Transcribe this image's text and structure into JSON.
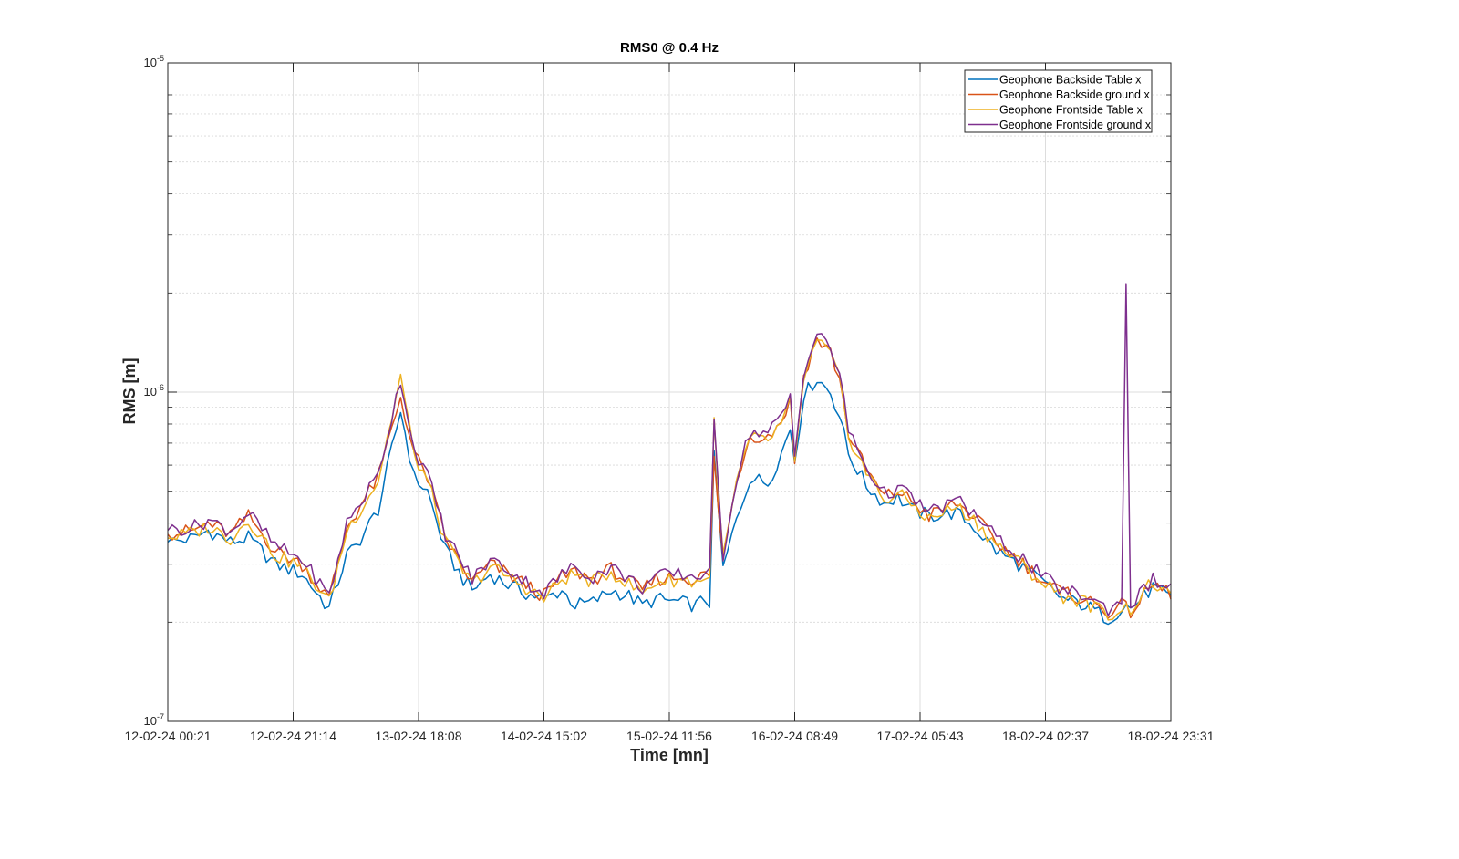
{
  "chart_data": {
    "type": "line",
    "title": "RMS0 @ 0.4 Hz",
    "xlabel": "Time [mn]",
    "ylabel": "RMS [m]",
    "yscale": "log",
    "ylim": [
      1e-07,
      1e-05
    ],
    "ytick_labels": [
      {
        "base": "10",
        "exp": "-7"
      },
      {
        "base": "10",
        "exp": "-6"
      },
      {
        "base": "10",
        "exp": "-5"
      }
    ],
    "x_tick_labels": [
      "12-02-24 00:21",
      "12-02-24 21:14",
      "13-02-24 18:08",
      "14-02-24 15:02",
      "15-02-24 11:56",
      "16-02-24 08:49",
      "17-02-24 05:43",
      "18-02-24 02:37",
      "18-02-24 23:31"
    ],
    "grid": true,
    "minor_grid": true,
    "legend_position": "top-right",
    "colors": [
      "#0072BD",
      "#D95319",
      "#EDB120",
      "#7E2F8E"
    ],
    "anchor_keys": [
      0,
      6,
      9,
      14,
      18,
      24,
      30,
      36,
      40,
      42,
      47,
      52,
      55,
      58,
      62,
      66,
      68,
      72,
      76,
      80,
      84,
      88,
      91,
      95,
      99,
      103,
      106,
      109,
      114,
      118,
      120,
      121,
      122,
      124,
      127,
      130,
      134,
      137,
      139,
      140,
      142,
      145,
      148,
      150,
      152,
      156,
      160,
      163,
      166,
      170,
      176,
      180,
      185,
      190,
      196,
      200,
      205,
      210,
      213,
      214,
      215,
      220,
      224
    ],
    "series": [
      {
        "name": "Geophone Backside Table x",
        "anchor_values": [
          3.5e-07,
          3.6e-07,
          3.8e-07,
          3.5e-07,
          3.6e-07,
          3e-07,
          2.8e-07,
          2.2e-07,
          3.2e-07,
          3.4e-07,
          4.4e-07,
          8.8e-07,
          5.5e-07,
          5e-07,
          3.3e-07,
          2.7e-07,
          2.5e-07,
          2.8e-07,
          2.6e-07,
          2.45e-07,
          2.35e-07,
          2.5e-07,
          2.25e-07,
          2.3e-07,
          2.5e-07,
          2.4e-07,
          2.25e-07,
          2.35e-07,
          2.3e-07,
          2.25e-07,
          2.35e-07,
          2.3e-07,
          6.3e-07,
          2.9e-07,
          4.1e-07,
          5.5e-07,
          5.3e-07,
          6.5e-07,
          7.8e-07,
          6.2e-07,
          9.8e-07,
          1.1e-06,
          1e-06,
          8.5e-07,
          6.5e-07,
          5.2e-07,
          4.6e-07,
          4.8e-07,
          4.4e-07,
          4.2e-07,
          4.3e-07,
          3.9e-07,
          3.3e-07,
          3e-07,
          2.6e-07,
          2.35e-07,
          2.25e-07,
          2.05e-07,
          2.2e-07,
          2.25e-07,
          2.2e-07,
          2.55e-07,
          2.35e-07
        ]
      },
      {
        "name": "Geophone Backside ground x",
        "anchor_values": [
          3.7e-07,
          3.8e-07,
          4e-07,
          3.7e-07,
          4.2e-07,
          3.3e-07,
          3e-07,
          2.35e-07,
          3.9e-07,
          4.3e-07,
          5.5e-07,
          9.7e-07,
          6.5e-07,
          5.5e-07,
          3.6e-07,
          2.9e-07,
          2.65e-07,
          3e-07,
          2.8e-07,
          2.6e-07,
          2.4e-07,
          2.75e-07,
          2.85e-07,
          2.7e-07,
          2.9e-07,
          2.65e-07,
          2.5e-07,
          2.7e-07,
          2.75e-07,
          2.7e-07,
          2.8e-07,
          2.75e-07,
          6.2e-07,
          3.1e-07,
          5.4e-07,
          7.4e-07,
          7.3e-07,
          8.2e-07,
          9.4e-07,
          6.2e-07,
          1.13e-06,
          1.45e-06,
          1.32e-06,
          1.1e-06,
          7.5e-07,
          5.8e-07,
          4.8e-07,
          5e-07,
          4.7e-07,
          4.2e-07,
          4.6e-07,
          4.2e-07,
          3.5e-07,
          3.1e-07,
          2.65e-07,
          2.45e-07,
          2.35e-07,
          2.15e-07,
          2.25e-07,
          2.2e-07,
          2.15e-07,
          2.6e-07,
          2.45e-07
        ]
      },
      {
        "name": "Geophone Frontside Table x",
        "anchor_values": [
          3.6e-07,
          3.75e-07,
          3.9e-07,
          3.6e-07,
          4.1e-07,
          3.2e-07,
          2.95e-07,
          2.3e-07,
          3.8e-07,
          4.2e-07,
          5.4e-07,
          1.12e-06,
          6.4e-07,
          5.4e-07,
          3.5e-07,
          2.85e-07,
          2.6e-07,
          2.95e-07,
          2.75e-07,
          2.55e-07,
          2.35e-07,
          2.7e-07,
          2.8e-07,
          2.65e-07,
          2.85e-07,
          2.6e-07,
          2.45e-07,
          2.65e-07,
          2.7e-07,
          2.65e-07,
          2.75e-07,
          2.7e-07,
          8.2e-07,
          3.1e-07,
          5.3e-07,
          7.2e-07,
          7.1e-07,
          8e-07,
          9.2e-07,
          6e-07,
          1.1e-06,
          1.42e-06,
          1.3e-06,
          1.08e-06,
          7.4e-07,
          5.7e-07,
          4.7e-07,
          4.9e-07,
          4.6e-07,
          4.1e-07,
          4.5e-07,
          4.1e-07,
          3.45e-07,
          3.05e-07,
          2.6e-07,
          2.4e-07,
          2.3e-07,
          2.1e-07,
          2.2e-07,
          2.2e-07,
          2.2e-07,
          2.65e-07,
          2.35e-07
        ]
      },
      {
        "name": "Geophone Frontside ground x",
        "anchor_values": [
          3.8e-07,
          3.9e-07,
          4.1e-07,
          3.8e-07,
          4.3e-07,
          3.4e-07,
          3.1e-07,
          2.4e-07,
          4e-07,
          4.4e-07,
          5.6e-07,
          1.1e-06,
          6.7e-07,
          5.6e-07,
          3.7e-07,
          3e-07,
          2.7e-07,
          3.1e-07,
          2.9e-07,
          2.65e-07,
          2.45e-07,
          2.8e-07,
          2.95e-07,
          2.75e-07,
          2.95e-07,
          2.7e-07,
          2.55e-07,
          2.75e-07,
          2.8e-07,
          2.75e-07,
          2.85e-07,
          2.8e-07,
          7.9e-07,
          3.2e-07,
          5.5e-07,
          7.6e-07,
          7.5e-07,
          8.4e-07,
          9.7e-07,
          6.4e-07,
          1.16e-06,
          1.5e-06,
          1.36e-06,
          1.13e-06,
          7.7e-07,
          5.9e-07,
          4.9e-07,
          5.1e-07,
          4.8e-07,
          4.3e-07,
          4.7e-07,
          4.3e-07,
          3.6e-07,
          3.2e-07,
          2.7e-07,
          2.5e-07,
          2.4e-07,
          2.2e-07,
          2.3e-07,
          2.2e-06,
          2.25e-07,
          2.7e-07,
          2.5e-07
        ]
      }
    ]
  }
}
